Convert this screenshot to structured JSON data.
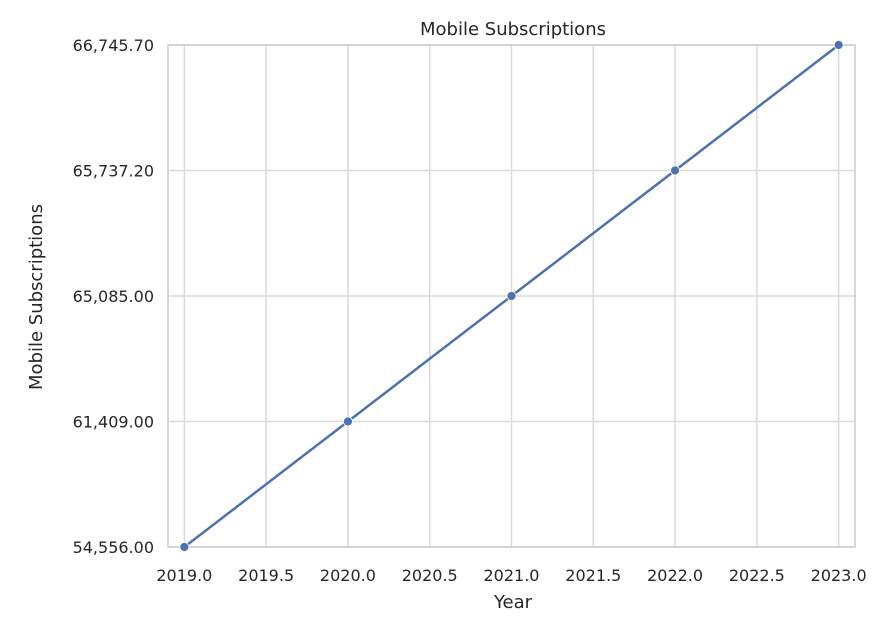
{
  "chart_data": {
    "type": "line",
    "title": "Mobile Subscriptions",
    "xlabel": "Year",
    "ylabel": "Mobile Subscriptions",
    "x": [
      2019,
      2020,
      2021,
      2022,
      2023
    ],
    "y": [
      54556.0,
      61409.0,
      65085.0,
      65737.2,
      66745.7
    ],
    "series": [
      {
        "values": [
          54556.0,
          61409.0,
          65085.0,
          65737.2,
          66745.7
        ]
      }
    ],
    "x_ticks": [
      2019.0,
      2019.5,
      2020.0,
      2020.5,
      2021.0,
      2021.5,
      2022.0,
      2022.5,
      2023.0
    ],
    "x_tick_labels": [
      "2019.0",
      "2019.5",
      "2020.0",
      "2020.5",
      "2021.0",
      "2021.5",
      "2022.0",
      "2022.5",
      "2023.0"
    ],
    "y_tick_labels": [
      "54,556.00",
      "61,409.00",
      "65,085.00",
      "65,737.20",
      "66,745.70"
    ],
    "y_scale": "categorical (each observed value is an evenly spaced tick)",
    "xlim": [
      2018.9,
      2023.1
    ],
    "grid": true,
    "legend": "none",
    "colors": {
      "line": "#4c72b0",
      "grid": "#d9d9d9",
      "frame": "#cccccc",
      "text": "#262626"
    }
  }
}
